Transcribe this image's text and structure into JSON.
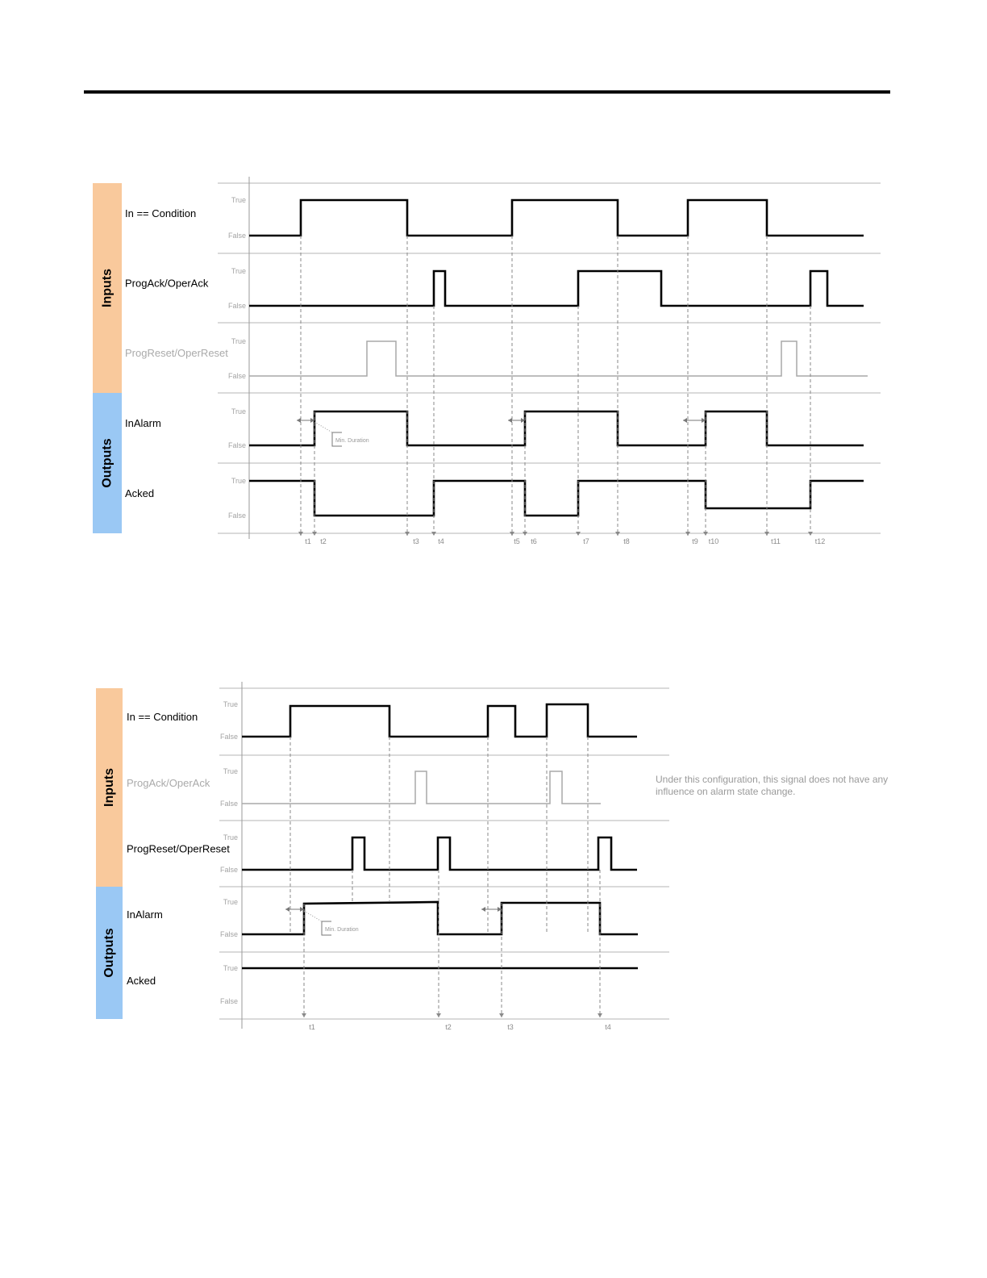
{
  "colors": {
    "inputs_band": "#f9c99c",
    "outputs_band": "#9ac8f4",
    "signal": "#000000",
    "faded_signal": "#a9a9a9",
    "grid": "#b5b5b5",
    "guide": "#8a8a8a",
    "level_text": "#a3a3a3"
  },
  "levels": {
    "true": "True",
    "false": "False"
  },
  "min_duration_label": "Min. Duration",
  "diagram1": {
    "groups": {
      "inputs": "Inputs",
      "outputs": "Outputs"
    },
    "rows": [
      {
        "name": "In == Condition",
        "signal": [
          [
            0,
            0
          ],
          [
            1,
            1
          ],
          [
            3,
            0
          ],
          [
            5,
            1
          ],
          [
            8,
            0
          ],
          [
            9,
            1
          ],
          [
            11,
            0
          ],
          [
            13,
            0
          ]
        ]
      },
      {
        "name": "ProgAck/OperAck",
        "signal": [
          [
            0,
            0
          ],
          [
            4,
            1
          ],
          [
            4.5,
            0
          ],
          [
            7,
            1
          ],
          [
            9,
            0
          ],
          [
            12,
            1
          ],
          [
            12.5,
            0
          ],
          [
            13,
            0
          ]
        ]
      },
      {
        "name": "ProgReset/OperReset",
        "faded": true,
        "signal": [
          [
            0,
            0
          ],
          [
            2.2,
            1
          ],
          [
            2.8,
            0
          ],
          [
            11.5,
            1
          ],
          [
            11.9,
            0
          ],
          [
            13,
            0
          ]
        ]
      },
      {
        "name": "InAlarm",
        "signal": [
          [
            0,
            0
          ],
          [
            2,
            1
          ],
          [
            3,
            0
          ],
          [
            6,
            1
          ],
          [
            8,
            0
          ],
          [
            10,
            1
          ],
          [
            11,
            0
          ],
          [
            13,
            0
          ]
        ]
      },
      {
        "name": "Acked",
        "signal": [
          [
            0,
            1
          ],
          [
            2,
            0
          ],
          [
            4,
            1
          ],
          [
            6,
            0
          ],
          [
            7,
            1
          ],
          [
            10,
            0
          ],
          [
            12,
            1
          ],
          [
            13,
            1
          ]
        ]
      }
    ],
    "events": [
      "t1",
      "t2",
      "t3",
      "t4",
      "t5",
      "t6",
      "t7",
      "t8",
      "t9",
      "t10",
      "t11",
      "t12"
    ]
  },
  "diagram2": {
    "groups": {
      "inputs": "Inputs",
      "outputs": "Outputs"
    },
    "rows": [
      {
        "name": "In == Condition",
        "signal": [
          [
            0,
            0
          ],
          [
            1,
            1
          ],
          [
            3,
            0
          ],
          [
            5,
            1
          ],
          [
            6,
            0
          ],
          [
            7,
            1
          ],
          [
            8,
            0
          ],
          [
            9,
            0
          ]
        ]
      },
      {
        "name": "ProgAck/OperAck",
        "faded": true,
        "signal": [
          [
            0,
            0
          ],
          [
            4,
            1
          ],
          [
            4.5,
            0
          ],
          [
            7,
            1
          ],
          [
            7.5,
            0
          ],
          [
            9,
            0
          ]
        ]
      },
      {
        "name": "ProgReset/OperReset",
        "signal": [
          [
            0,
            0
          ],
          [
            2,
            1
          ],
          [
            2.5,
            0
          ],
          [
            4.5,
            1
          ],
          [
            5,
            0
          ],
          [
            8.5,
            1
          ],
          [
            9,
            0
          ]
        ]
      },
      {
        "name": "InAlarm",
        "signal": [
          [
            0,
            0
          ],
          [
            1.5,
            1
          ],
          [
            4.5,
            0
          ],
          [
            6,
            1
          ],
          [
            8.5,
            0
          ],
          [
            9,
            0
          ]
        ]
      },
      {
        "name": "Acked",
        "signal": [
          [
            0,
            1
          ],
          [
            9,
            1
          ]
        ]
      }
    ],
    "events": [
      "t1",
      "t2",
      "t3",
      "t4"
    ],
    "note": "Under this configuration, this signal does not have any influence on alarm state change."
  }
}
